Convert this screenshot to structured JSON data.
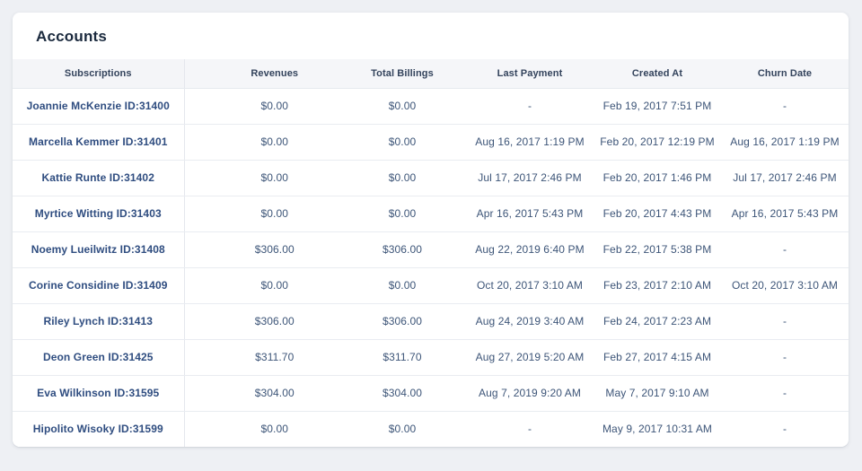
{
  "title": "Accounts",
  "table": {
    "headers": [
      {
        "key": "subscription",
        "label": "Subscriptions"
      },
      {
        "key": "revenues",
        "label": "Revenues"
      },
      {
        "key": "total_billings",
        "label": "Total Billings"
      },
      {
        "key": "last_payment",
        "label": "Last Payment"
      },
      {
        "key": "created_at",
        "label": "Created At"
      },
      {
        "key": "churn_date",
        "label": "Churn Date"
      }
    ],
    "rows": [
      {
        "subscription": "Joannie McKenzie ID:31400",
        "revenues": "$0.00",
        "total_billings": "$0.00",
        "last_payment": "-",
        "created_at": "Feb 19, 2017 7:51 PM",
        "churn_date": "-"
      },
      {
        "subscription": "Marcella Kemmer ID:31401",
        "revenues": "$0.00",
        "total_billings": "$0.00",
        "last_payment": "Aug 16, 2017 1:19 PM",
        "created_at": "Feb 20, 2017 12:19 PM",
        "churn_date": "Aug 16, 2017 1:19 PM"
      },
      {
        "subscription": "Kattie Runte ID:31402",
        "revenues": "$0.00",
        "total_billings": "$0.00",
        "last_payment": "Jul 17, 2017 2:46 PM",
        "created_at": "Feb 20, 2017 1:46 PM",
        "churn_date": "Jul 17, 2017 2:46 PM"
      },
      {
        "subscription": "Myrtice Witting ID:31403",
        "revenues": "$0.00",
        "total_billings": "$0.00",
        "last_payment": "Apr 16, 2017 5:43 PM",
        "created_at": "Feb 20, 2017 4:43 PM",
        "churn_date": "Apr 16, 2017 5:43 PM"
      },
      {
        "subscription": "Noemy Lueilwitz ID:31408",
        "revenues": "$306.00",
        "total_billings": "$306.00",
        "last_payment": "Aug 22, 2019 6:40 PM",
        "created_at": "Feb 22, 2017 5:38 PM",
        "churn_date": "-"
      },
      {
        "subscription": "Corine Considine ID:31409",
        "revenues": "$0.00",
        "total_billings": "$0.00",
        "last_payment": "Oct 20, 2017 3:10 AM",
        "created_at": "Feb 23, 2017 2:10 AM",
        "churn_date": "Oct 20, 2017 3:10 AM"
      },
      {
        "subscription": "Riley Lynch ID:31413",
        "revenues": "$306.00",
        "total_billings": "$306.00",
        "last_payment": "Aug 24, 2019 3:40 AM",
        "created_at": "Feb 24, 2017 2:23 AM",
        "churn_date": "-"
      },
      {
        "subscription": "Deon Green ID:31425",
        "revenues": "$311.70",
        "total_billings": "$311.70",
        "last_payment": "Aug 27, 2019 5:20 AM",
        "created_at": "Feb 27, 2017 4:15 AM",
        "churn_date": "-"
      },
      {
        "subscription": "Eva Wilkinson ID:31595",
        "revenues": "$304.00",
        "total_billings": "$304.00",
        "last_payment": "Aug 7, 2019 9:20 AM",
        "created_at": "May 7, 2017 9:10 AM",
        "churn_date": "-"
      },
      {
        "subscription": "Hipolito Wisoky ID:31599",
        "revenues": "$0.00",
        "total_billings": "$0.00",
        "last_payment": "-",
        "created_at": "May 9, 2017 10:31 AM",
        "churn_date": "-"
      }
    ]
  },
  "colors": {
    "page_background": "#eef0f4",
    "card_background": "#ffffff",
    "title_text": "#1b2a3e",
    "header_text": "#33435c",
    "header_background": "#f5f6f9",
    "name_text": "#2f4d80",
    "value_text": "#3d5578",
    "row_border": "#e9ecf1"
  }
}
